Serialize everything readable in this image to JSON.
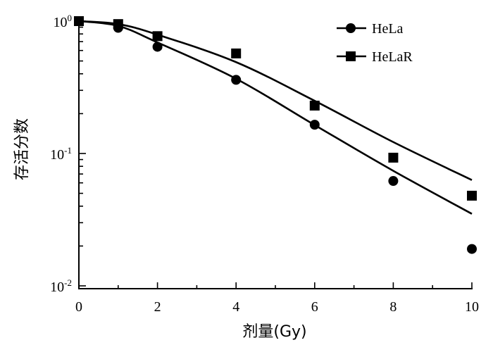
{
  "chart_data": {
    "type": "scatter",
    "xlabel": "剂量(Gy)",
    "ylabel": "存活分数",
    "xlim": [
      0,
      10
    ],
    "ylim": [
      0.01,
      1.1
    ],
    "y_scale": "log",
    "x_ticks": [
      0,
      2,
      4,
      6,
      8,
      10
    ],
    "x_tick_labels": [
      "0",
      "2",
      "4",
      "6",
      "8",
      "10"
    ],
    "y_tick_labels": [
      {
        "base": "10",
        "exp": "0",
        "value": 1
      },
      {
        "base": "10",
        "exp": "-1",
        "value": 0.1
      },
      {
        "base": "10",
        "exp": "-2",
        "value": 0.01
      }
    ],
    "grid": false,
    "legend_position": "top-right",
    "series": [
      {
        "name": "HeLa",
        "marker": "circle",
        "x": [
          0,
          1,
          2,
          4,
          6,
          8,
          10
        ],
        "y": [
          1.0,
          0.89,
          0.64,
          0.36,
          0.165,
          0.062,
          0.019
        ],
        "fit_y": [
          1.0,
          0.92,
          0.69,
          0.367,
          0.164,
          0.074,
          0.035
        ]
      },
      {
        "name": "HeLaR",
        "marker": "square",
        "x": [
          0,
          1,
          2,
          4,
          6,
          8,
          10
        ],
        "y": [
          1.0,
          0.95,
          0.77,
          0.57,
          0.23,
          0.093,
          0.048
        ],
        "fit_y": [
          1.0,
          0.95,
          0.79,
          0.49,
          0.25,
          0.122,
          0.063
        ]
      }
    ]
  }
}
